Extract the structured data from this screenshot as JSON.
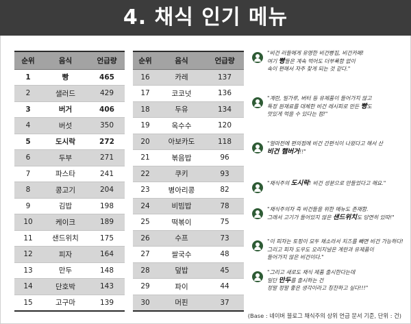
{
  "title": "4. 채식 인기 메뉴",
  "table": {
    "headers": [
      "순위",
      "음식",
      "언급량"
    ],
    "left_rows": [
      {
        "rank": "1",
        "food": "빵",
        "count": "465"
      },
      {
        "rank": "2",
        "food": "샐러드",
        "count": "429"
      },
      {
        "rank": "3",
        "food": "버거",
        "count": "406"
      },
      {
        "rank": "4",
        "food": "버섯",
        "count": "350"
      },
      {
        "rank": "5",
        "food": "도시락",
        "count": "272"
      },
      {
        "rank": "6",
        "food": "두부",
        "count": "271"
      },
      {
        "rank": "7",
        "food": "파스타",
        "count": "241"
      },
      {
        "rank": "8",
        "food": "콩고기",
        "count": "204"
      },
      {
        "rank": "9",
        "food": "김밥",
        "count": "198"
      },
      {
        "rank": "10",
        "food": "케이크",
        "count": "189"
      },
      {
        "rank": "11",
        "food": "샌드위치",
        "count": "175"
      },
      {
        "rank": "12",
        "food": "피자",
        "count": "164"
      },
      {
        "rank": "13",
        "food": "만두",
        "count": "148"
      },
      {
        "rank": "14",
        "food": "단호박",
        "count": "143"
      },
      {
        "rank": "15",
        "food": "고구마",
        "count": "139"
      }
    ],
    "right_rows": [
      {
        "rank": "16",
        "food": "카레",
        "count": "137"
      },
      {
        "rank": "17",
        "food": "코코넛",
        "count": "136"
      },
      {
        "rank": "18",
        "food": "두유",
        "count": "134"
      },
      {
        "rank": "19",
        "food": "옥수수",
        "count": "120"
      },
      {
        "rank": "20",
        "food": "아보카도",
        "count": "118"
      },
      {
        "rank": "21",
        "food": "볶음밥",
        "count": "96"
      },
      {
        "rank": "22",
        "food": "쿠키",
        "count": "93"
      },
      {
        "rank": "23",
        "food": "병아리콩",
        "count": "82"
      },
      {
        "rank": "24",
        "food": "비빔밥",
        "count": "78"
      },
      {
        "rank": "25",
        "food": "떡볶이",
        "count": "75"
      },
      {
        "rank": "26",
        "food": "수프",
        "count": "73"
      },
      {
        "rank": "27",
        "food": "쌀국수",
        "count": "48"
      },
      {
        "rank": "28",
        "food": "덮밥",
        "count": "45"
      },
      {
        "rank": "29",
        "food": "파이",
        "count": "44"
      },
      {
        "rank": "30",
        "food": "머핀",
        "count": "37"
      }
    ]
  },
  "quotes": [
    {
      "lines": [
        [
          {
            "t": "\"비건 러들에게 유명한 비건빵집, 비건카페!"
          }
        ],
        [
          {
            "t": "여기 "
          },
          {
            "t": "빵",
            "b": true
          },
          {
            "t": "들은 계속 먹어도 더부룩함 없이"
          }
        ],
        [
          {
            "t": "속이 편해서 자주 찾게 되는 것 같다.\""
          }
        ]
      ]
    },
    {
      "lines": [
        [
          {
            "t": "\"계란, 밀가루, 버터 등 유제품이 들어가지 않고"
          }
        ],
        [
          {
            "t": "특정 원재료를 대체한 비건 레시피로 만든 "
          },
          {
            "t": "빵",
            "b": true
          },
          {
            "t": "도"
          }
        ],
        [
          {
            "t": "맛있게 먹을 수 있다는 점!\""
          }
        ]
      ]
    },
    {
      "lines": [
        [
          {
            "t": "\"얼마전에 편의점에 비건 간편식이 나왔다고 해서 산"
          }
        ],
        [
          {
            "t": "비건 햄버거",
            "b": true
          },
          {
            "t": "!!\""
          }
        ]
      ]
    },
    {
      "lines": [
        [
          {
            "t": "\"채식주의 "
          },
          {
            "t": "도시락",
            "b": true
          },
          {
            "t": "! 비건 성분으로 만들었다고 해요.\""
          }
        ]
      ]
    },
    {
      "lines": [
        [
          {
            "t": "\"채식주의자 즉 비건들을 위한 메뉴도 존재함."
          }
        ],
        [
          {
            "t": "그래서 고기가 들어있지 않은 "
          },
          {
            "t": "샌드위치",
            "b": true
          },
          {
            "t": "도 당연히 있따!\""
          }
        ]
      ]
    },
    {
      "lines": [
        [
          {
            "t": "\"이 피자는 토핑이 모두 채소라서 치즈를 빼면 비건 가능하다!"
          }
        ],
        [
          {
            "t": "그리고 피자 도우도 오리지널은 계란과 유제품이"
          }
        ],
        [
          {
            "t": "들어가지 않은 비건이다.\""
          }
        ]
      ]
    },
    {
      "lines": [
        [
          {
            "t": "\"그리고 새로도 채식 제품 출시한다는데"
          }
        ],
        [
          {
            "t": "일단 "
          },
          {
            "t": "만두",
            "b": true
          },
          {
            "t": "를 출시하는 건"
          }
        ],
        [
          {
            "t": "정말 정말 좋은 생각이라고 칭찬하고 싶다!!!\""
          }
        ]
      ]
    }
  ],
  "source_note": "(Base : 네이버 블로그 채식주의 상위 언급 문서 기준, 단위 : 건)",
  "colors": {
    "header_bg": "#3c3c3c",
    "table_header": "#a3a3a3",
    "stripe": "#d6d6d6",
    "avatar": "#2e5b35"
  }
}
